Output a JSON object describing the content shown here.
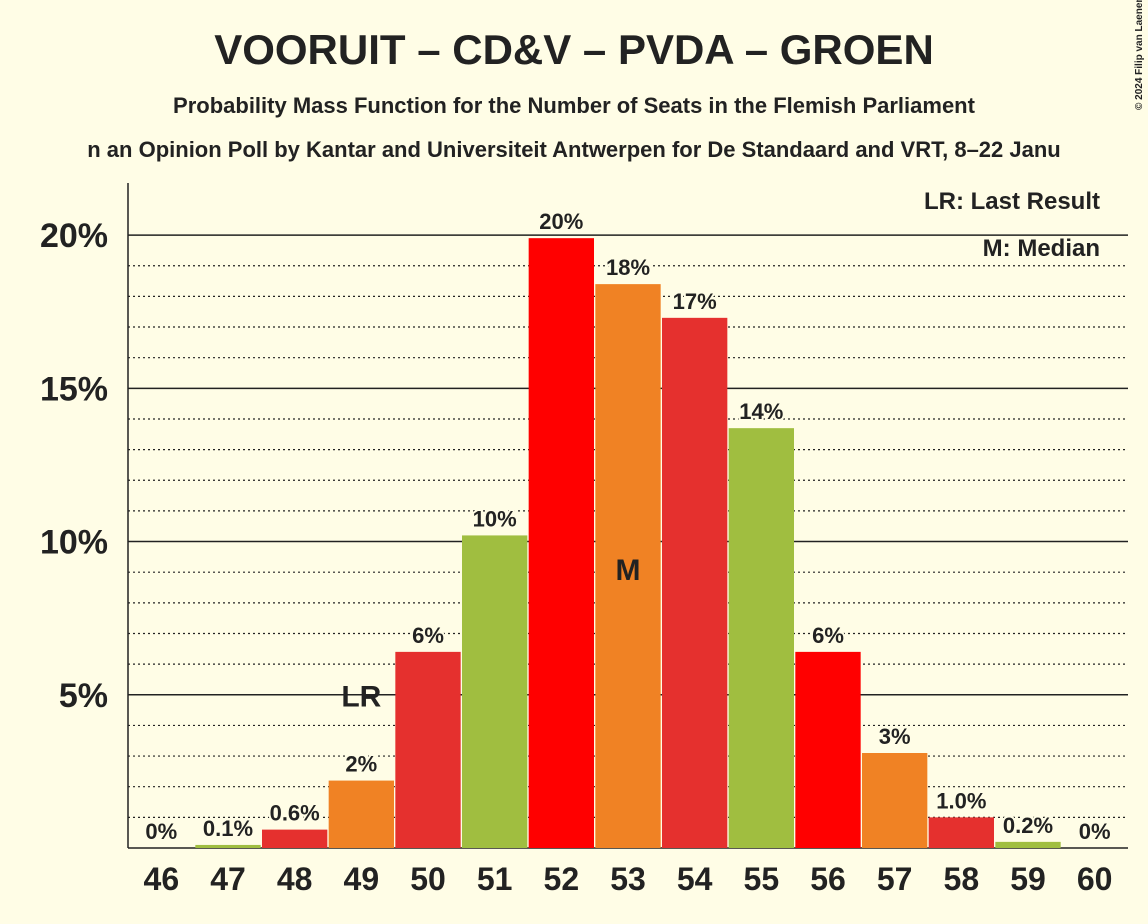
{
  "chart_data": {
    "type": "bar",
    "title": "VOORUIT – CD&V – PVDA – GROEN",
    "subtitle": "Probability Mass Function for the Number of Seats in the Flemish Parliament",
    "source": "n an Opinion Poll by Kantar and Universiteit Antwerpen for De Standaard and VRT, 8–22 Janu",
    "copyright": "© 2024 Filip van Laenen",
    "categories": [
      "46",
      "47",
      "48",
      "49",
      "50",
      "51",
      "52",
      "53",
      "54",
      "55",
      "56",
      "57",
      "58",
      "59",
      "60"
    ],
    "values": [
      0,
      0.1,
      0.6,
      2.2,
      6.4,
      10.2,
      19.9,
      18.4,
      17.3,
      13.7,
      6.4,
      3.1,
      1.0,
      0.2,
      0
    ],
    "value_labels": [
      "0%",
      "0.1%",
      "0.6%",
      "2%",
      "6%",
      "10%",
      "20%",
      "18%",
      "17%",
      "14%",
      "6%",
      "3%",
      "1.0%",
      "0.2%",
      "0%"
    ],
    "colors": [
      "#e5302e",
      "#a0be40",
      "#e5302e",
      "#f08224",
      "#e5302e",
      "#a0be40",
      "#ff0000",
      "#f08224",
      "#e5302e",
      "#a0be40",
      "#ff0000",
      "#f08224",
      "#e5302e",
      "#a0be40",
      "#ff0000"
    ],
    "ylim": [
      0,
      21.7
    ],
    "yticks": [
      {
        "value": 5,
        "label": "5%"
      },
      {
        "value": 10,
        "label": "10%"
      },
      {
        "value": 15,
        "label": "15%"
      },
      {
        "value": 20,
        "label": "20%"
      }
    ],
    "minor_gridlines": [
      1,
      2,
      3,
      4,
      6,
      7,
      8,
      9,
      11,
      12,
      13,
      14,
      16,
      17,
      18,
      19
    ],
    "markers": [
      {
        "label": "LR",
        "at": "49"
      },
      {
        "label": "M",
        "at": "53"
      }
    ],
    "legend": [
      "LR: Last Result",
      "M: Median"
    ],
    "grid": true
  }
}
